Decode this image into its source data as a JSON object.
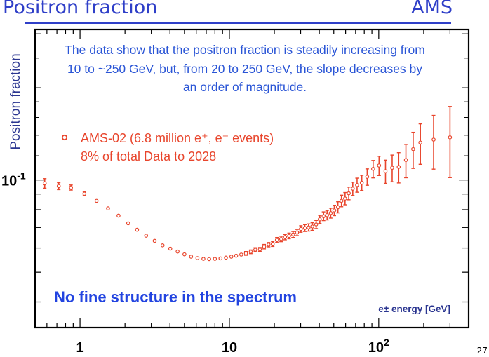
{
  "slide": {
    "title": "Positron fraction",
    "brand": "AMS",
    "page_number": "27"
  },
  "chart_data": {
    "type": "scatter",
    "title": "",
    "xlabel": "e± energy [GeV]",
    "ylabel": "Positron fraction",
    "x_scale": "log",
    "y_scale": "log",
    "xlim": [
      0.5,
      400
    ],
    "ylim": [
      0.033,
      0.31
    ],
    "x_ticks": [
      {
        "value": 1,
        "label": "1"
      },
      {
        "value": 10,
        "label": "10"
      },
      {
        "value": 100,
        "label": "10",
        "sup": "2"
      }
    ],
    "y_ticks": [
      {
        "value": 0.1,
        "label": "10",
        "sup": "-1"
      }
    ],
    "grid": false,
    "legend": {
      "position": "upper-left",
      "entries": [
        "AMS-02 (6.8 million e⁺, e⁻ events)",
        "8% of total Data to 2028"
      ]
    },
    "annotations": {
      "summary_lines": [
        "The data show that the positron fraction is steadily increasing from",
        "10 to ~250 GeV, but, from 20 to 250 GeV, the slope decreases by",
        "an order of magnitude."
      ],
      "headline": "No fine structure in the spectrum"
    },
    "colors": {
      "data": "#e8452c",
      "annotation": "#2a55d6",
      "headline": "#2244e0",
      "axis_title": "#2a3590",
      "frame": "#000000"
    },
    "series": [
      {
        "name": "AMS-02 (6.8 million e⁺, e⁻ events)",
        "points": [
          {
            "x": 0.58,
            "y": 0.0975,
            "err": 0.0035
          },
          {
            "x": 0.72,
            "y": 0.0955,
            "err": 0.0025
          },
          {
            "x": 0.87,
            "y": 0.0945,
            "err": 0.0018
          },
          {
            "x": 1.07,
            "y": 0.0902,
            "err": 0.0012
          },
          {
            "x": 1.29,
            "y": 0.0855,
            "err": 0.001
          },
          {
            "x": 1.54,
            "y": 0.0808,
            "err": 0.0009
          },
          {
            "x": 1.81,
            "y": 0.0765,
            "err": 0.0008
          },
          {
            "x": 2.1,
            "y": 0.0722,
            "err": 0.0007
          },
          {
            "x": 2.41,
            "y": 0.0688,
            "err": 0.0007
          },
          {
            "x": 2.77,
            "y": 0.0658,
            "err": 0.0006
          },
          {
            "x": 3.16,
            "y": 0.0633,
            "err": 0.0006
          },
          {
            "x": 3.57,
            "y": 0.0612,
            "err": 0.0006
          },
          {
            "x": 4.02,
            "y": 0.0597,
            "err": 0.0006
          },
          {
            "x": 4.5,
            "y": 0.0584,
            "err": 0.0006
          },
          {
            "x": 5.0,
            "y": 0.0572,
            "err": 0.0006
          },
          {
            "x": 5.54,
            "y": 0.0562,
            "err": 0.0006
          },
          {
            "x": 6.11,
            "y": 0.0556,
            "err": 0.0006
          },
          {
            "x": 6.7,
            "y": 0.0553,
            "err": 0.0006
          },
          {
            "x": 7.32,
            "y": 0.0552,
            "err": 0.0006
          },
          {
            "x": 8.0,
            "y": 0.0553,
            "err": 0.0006
          },
          {
            "x": 8.72,
            "y": 0.0555,
            "err": 0.0006
          },
          {
            "x": 9.48,
            "y": 0.0558,
            "err": 0.0006
          },
          {
            "x": 10.3,
            "y": 0.0562,
            "err": 0.0006
          },
          {
            "x": 11.1,
            "y": 0.0566,
            "err": 0.0007
          },
          {
            "x": 12.0,
            "y": 0.0571,
            "err": 0.0007
          },
          {
            "x": 12.9,
            "y": 0.0576,
            "err": 0.0008
          },
          {
            "x": 13.9,
            "y": 0.0583,
            "err": 0.0008
          },
          {
            "x": 14.9,
            "y": 0.0592,
            "err": 0.0009
          },
          {
            "x": 16.0,
            "y": 0.0593,
            "err": 0.0009
          },
          {
            "x": 17.1,
            "y": 0.0606,
            "err": 0.001
          },
          {
            "x": 18.3,
            "y": 0.0615,
            "err": 0.001
          },
          {
            "x": 19.5,
            "y": 0.0618,
            "err": 0.0011
          },
          {
            "x": 20.8,
            "y": 0.0637,
            "err": 0.0012
          },
          {
            "x": 22.2,
            "y": 0.0642,
            "err": 0.0013
          },
          {
            "x": 23.6,
            "y": 0.0651,
            "err": 0.0013
          },
          {
            "x": 25.1,
            "y": 0.0657,
            "err": 0.0014
          },
          {
            "x": 26.7,
            "y": 0.0664,
            "err": 0.0015
          },
          {
            "x": 28.4,
            "y": 0.0674,
            "err": 0.0016
          },
          {
            "x": 30.1,
            "y": 0.0692,
            "err": 0.0017
          },
          {
            "x": 32.0,
            "y": 0.0697,
            "err": 0.0018
          },
          {
            "x": 33.9,
            "y": 0.07,
            "err": 0.0019
          },
          {
            "x": 35.9,
            "y": 0.0705,
            "err": 0.002
          },
          {
            "x": 38.1,
            "y": 0.0716,
            "err": 0.0022
          },
          {
            "x": 40.3,
            "y": 0.0744,
            "err": 0.0023
          },
          {
            "x": 42.7,
            "y": 0.0762,
            "err": 0.0025
          },
          {
            "x": 45.1,
            "y": 0.0768,
            "err": 0.0027
          },
          {
            "x": 47.7,
            "y": 0.078,
            "err": 0.0029
          },
          {
            "x": 50.4,
            "y": 0.0796,
            "err": 0.0031
          },
          {
            "x": 53.3,
            "y": 0.0815,
            "err": 0.0034
          },
          {
            "x": 56.3,
            "y": 0.0855,
            "err": 0.0037
          },
          {
            "x": 59.5,
            "y": 0.087,
            "err": 0.004
          },
          {
            "x": 63.0,
            "y": 0.0905,
            "err": 0.0043
          },
          {
            "x": 67.0,
            "y": 0.0937,
            "err": 0.0047
          },
          {
            "x": 71.6,
            "y": 0.0963,
            "err": 0.0051
          },
          {
            "x": 77.0,
            "y": 0.098,
            "err": 0.0056
          },
          {
            "x": 83.7,
            "y": 0.1024,
            "err": 0.0063
          },
          {
            "x": 91.7,
            "y": 0.1087,
            "err": 0.0071
          },
          {
            "x": 100.5,
            "y": 0.1115,
            "err": 0.0081
          },
          {
            "x": 111.0,
            "y": 0.1068,
            "err": 0.0093
          },
          {
            "x": 123.0,
            "y": 0.1096,
            "err": 0.011
          },
          {
            "x": 136.0,
            "y": 0.1103,
            "err": 0.0125
          },
          {
            "x": 152.0,
            "y": 0.1162,
            "err": 0.0145
          },
          {
            "x": 170.0,
            "y": 0.1261,
            "err": 0.017
          },
          {
            "x": 190.0,
            "y": 0.1325,
            "err": 0.02
          },
          {
            "x": 233.0,
            "y": 0.1355,
            "err": 0.027
          },
          {
            "x": 300.0,
            "y": 0.1378,
            "err": 0.036
          }
        ]
      }
    ]
  }
}
